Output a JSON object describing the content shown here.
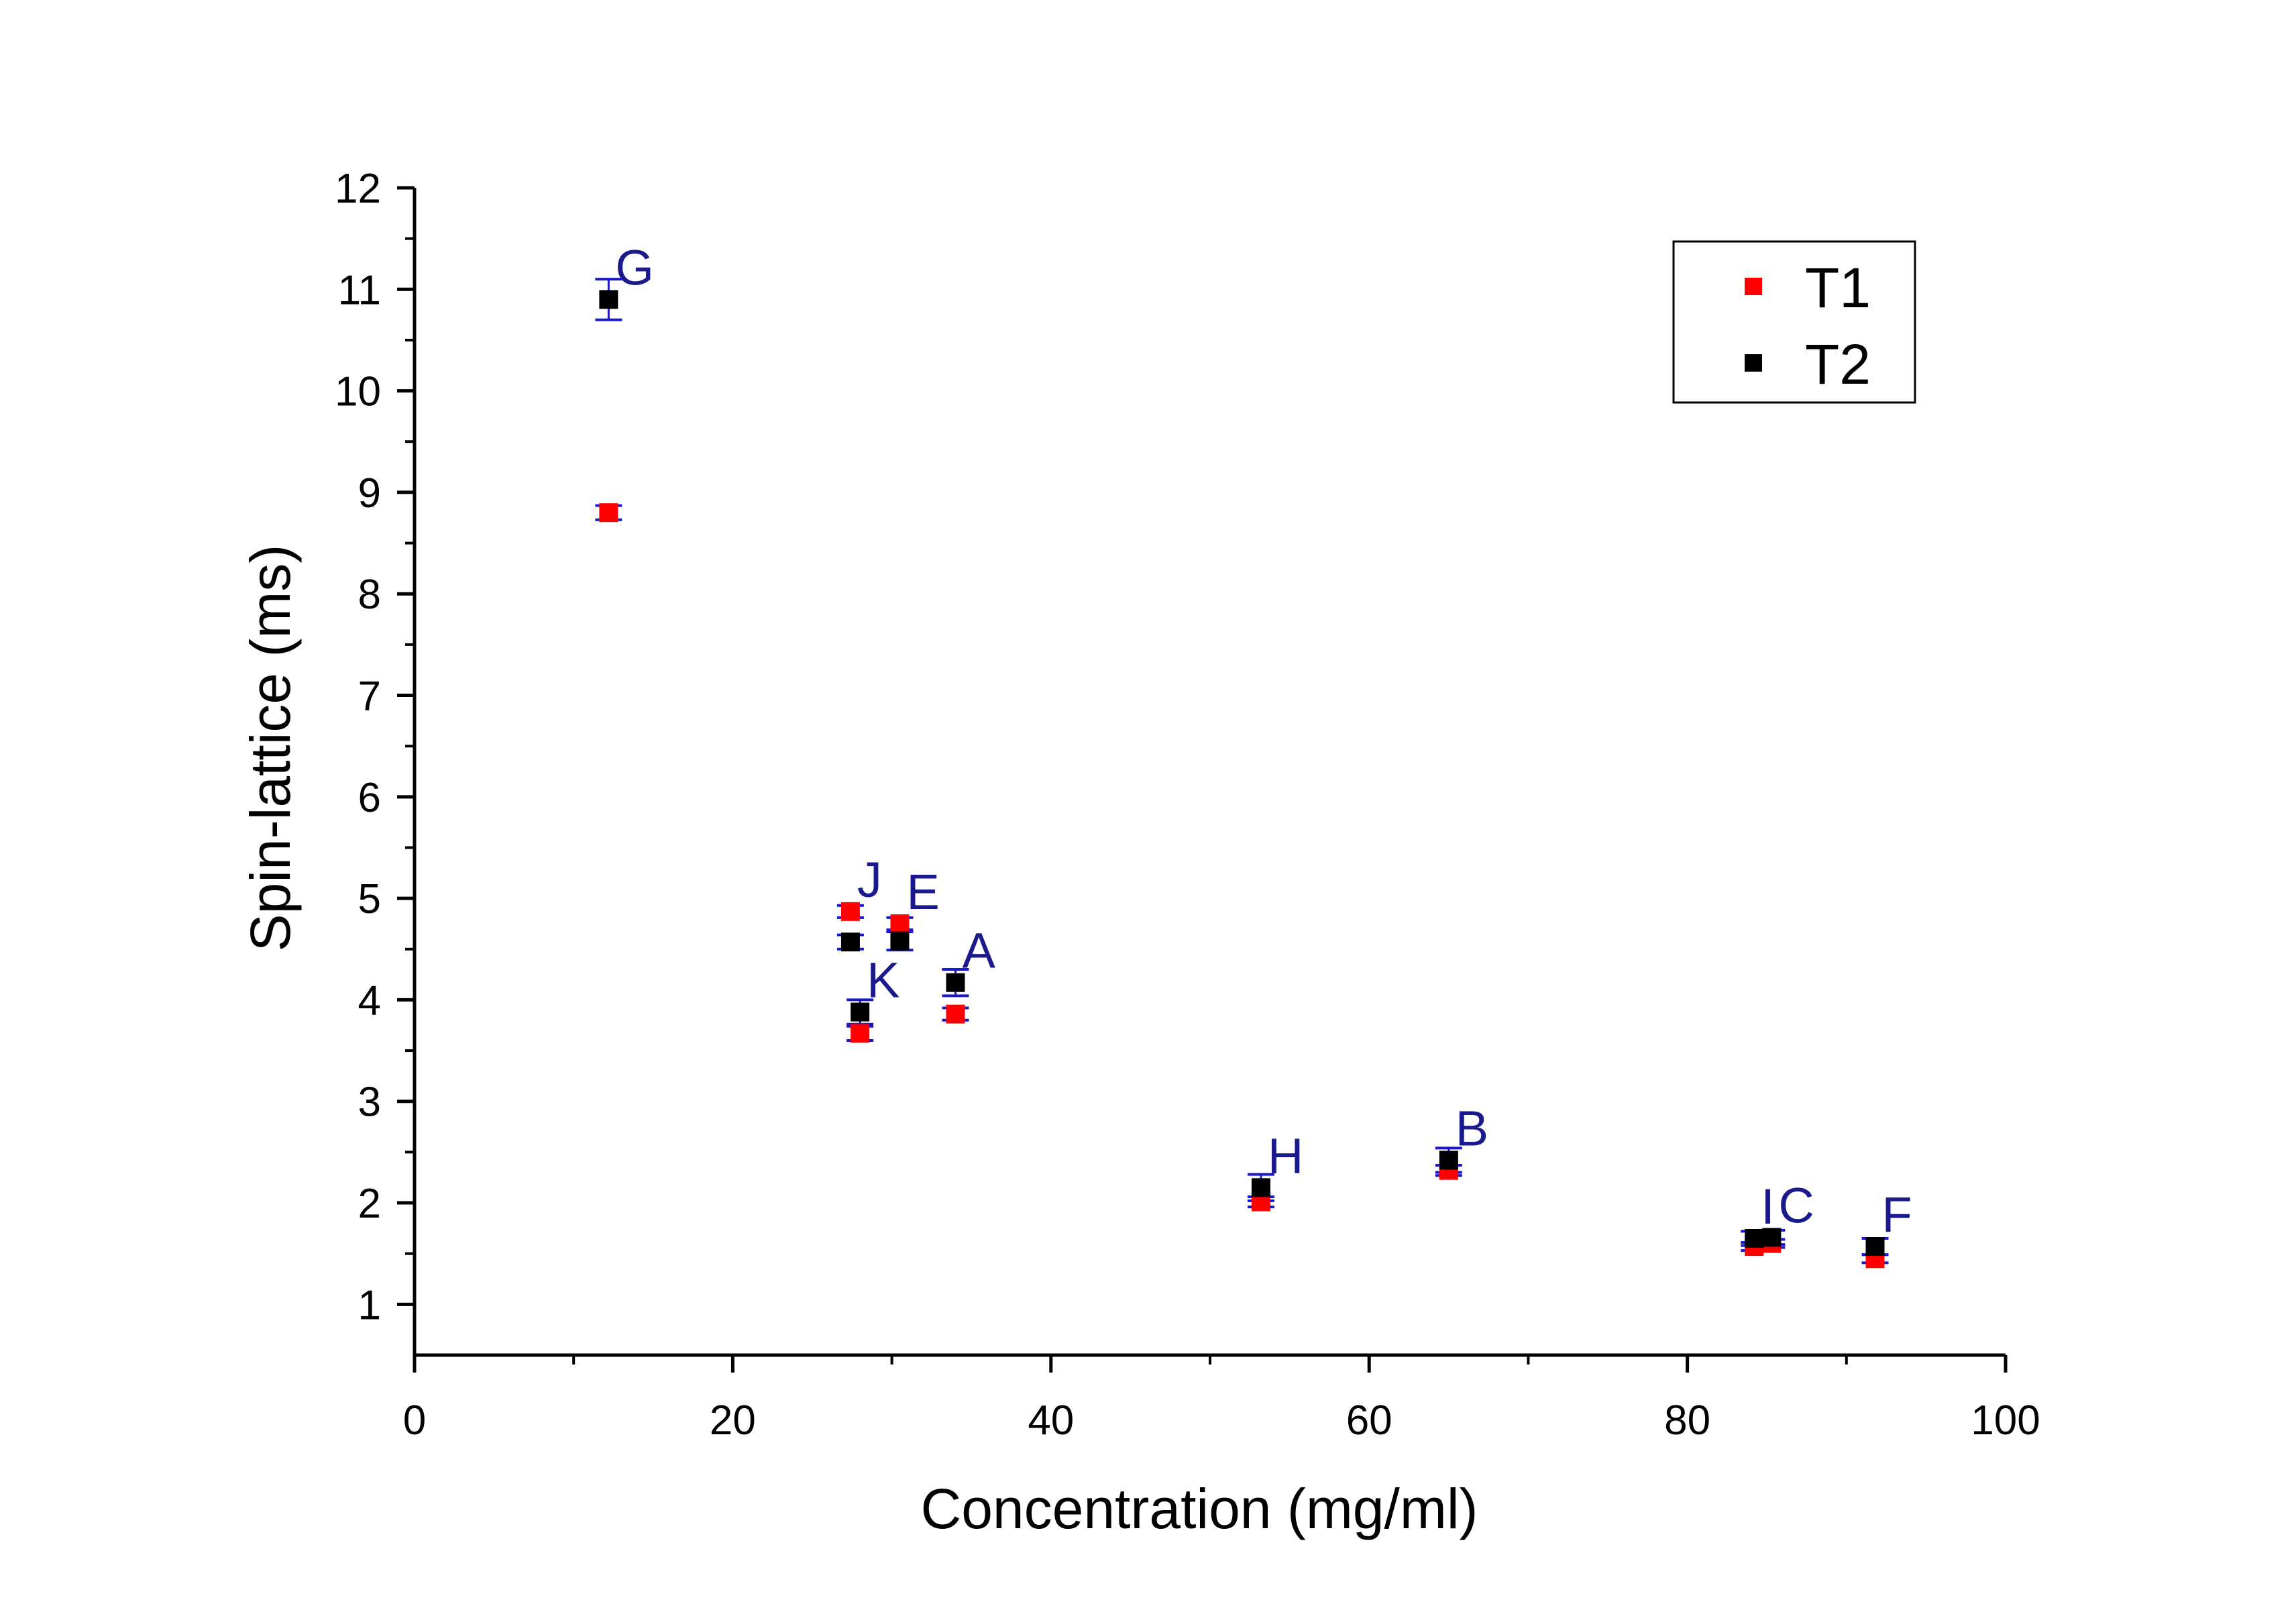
{
  "chart_data": {
    "type": "scatter",
    "xlabel": "Concentration (mg/ml)",
    "ylabel": "Spin-lattice (ms)",
    "xlim": [
      0,
      100
    ],
    "ylim": [
      0.5,
      12
    ],
    "x_ticks": [
      0,
      20,
      40,
      60,
      80,
      100
    ],
    "y_ticks": [
      1,
      2,
      3,
      4,
      5,
      6,
      7,
      8,
      9,
      10,
      11,
      12
    ],
    "x_tick_labels": [
      "0",
      "20",
      "40",
      "60",
      "80",
      "100"
    ],
    "y_tick_labels": [
      "1",
      "2",
      "3",
      "4",
      "5",
      "6",
      "7",
      "8",
      "9",
      "10",
      "11",
      "12"
    ],
    "grid": false,
    "legend_position": "top-right",
    "series": [
      {
        "name": "T1",
        "color": "#ff0000",
        "points": [
          {
            "x": 12.2,
            "y": 8.8,
            "err": 0.07
          },
          {
            "x": 27.4,
            "y": 4.87,
            "err": 0.06
          },
          {
            "x": 28.0,
            "y": 3.67,
            "err": 0.07
          },
          {
            "x": 30.5,
            "y": 4.75,
            "err": 0.06
          },
          {
            "x": 34.0,
            "y": 3.86,
            "err": 0.06
          },
          {
            "x": 53.2,
            "y": 2.01,
            "err": 0.05
          },
          {
            "x": 65.0,
            "y": 2.32,
            "err": 0.05
          },
          {
            "x": 84.2,
            "y": 1.57,
            "err": 0.04
          },
          {
            "x": 85.3,
            "y": 1.6,
            "err": 0.04
          },
          {
            "x": 91.8,
            "y": 1.45,
            "err": 0.04
          }
        ]
      },
      {
        "name": "T2",
        "color": "#000000",
        "points": [
          {
            "x": 12.2,
            "y": 10.9,
            "err": 0.2
          },
          {
            "x": 27.4,
            "y": 4.57,
            "err": 0.07
          },
          {
            "x": 28.0,
            "y": 3.88,
            "err": 0.12
          },
          {
            "x": 30.5,
            "y": 4.58,
            "err": 0.09
          },
          {
            "x": 34.0,
            "y": 4.17,
            "err": 0.13
          },
          {
            "x": 53.2,
            "y": 2.15,
            "err": 0.13
          },
          {
            "x": 65.0,
            "y": 2.42,
            "err": 0.12
          },
          {
            "x": 84.2,
            "y": 1.65,
            "err": 0.07
          },
          {
            "x": 85.3,
            "y": 1.66,
            "err": 0.07
          },
          {
            "x": 91.8,
            "y": 1.57,
            "err": 0.08
          }
        ]
      }
    ],
    "point_labels": [
      {
        "text": "G",
        "x": 12.2,
        "y": 10.9
      },
      {
        "text": "J",
        "x": 27.4,
        "y": 4.87
      },
      {
        "text": "K",
        "x": 28.0,
        "y": 3.88
      },
      {
        "text": "E",
        "x": 30.5,
        "y": 4.75
      },
      {
        "text": "A",
        "x": 34.0,
        "y": 4.17
      },
      {
        "text": "H",
        "x": 53.2,
        "y": 2.15
      },
      {
        "text": "B",
        "x": 65.0,
        "y": 2.42
      },
      {
        "text": "I",
        "x": 84.2,
        "y": 1.65
      },
      {
        "text": "C",
        "x": 85.3,
        "y": 1.66
      },
      {
        "text": "F",
        "x": 91.8,
        "y": 1.57
      }
    ],
    "label_color": "#1a1a8c",
    "error_bar_color": "#1a1acc"
  }
}
